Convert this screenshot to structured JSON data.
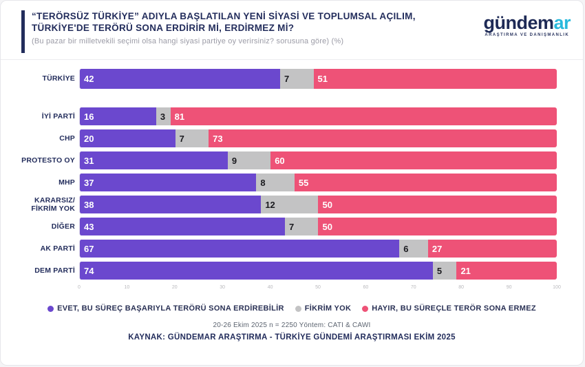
{
  "header": {
    "title_line1": "“TERÖRSÜZ TÜRKİYE” ADIYLA BAŞLATILAN YENİ SİYASİ VE TOPLUMSAL AÇILIM,",
    "title_line2": "TÜRKİYE'DE TERÖRÜ SONA ERDİRİR Mİ, ERDİRMEZ Mİ?",
    "subtitle": "(Bu pazar bir milletvekili seçimi olsa hangi siyasi partiye oy verirsiniz? sorusuna göre) (%)",
    "logo": {
      "text_main": "gündem",
      "text_accent": "ar",
      "tagline": "ARAŞTIRMA VE DANIŞMANLIK"
    }
  },
  "chart_data": {
    "type": "bar",
    "orientation": "horizontal",
    "stacked": true,
    "grid": false,
    "legend_position": "bottom",
    "categories": [
      "TÜRKİYE",
      "İYİ PARTİ",
      "CHP",
      "PROTESTO OY",
      "MHP",
      "KARARSIZ/ FİKRİM YOK",
      "DİĞER",
      "AK PARTİ",
      "DEM PARTİ"
    ],
    "series": [
      {
        "name": "EVET, BU SÜREÇ BAŞARIYLA TERÖRÜ SONA ERDİREBİLİR",
        "color": "#6b48ce",
        "label_color": "#ffffff",
        "values": [
          42,
          16,
          20,
          31,
          37,
          38,
          43,
          67,
          74
        ]
      },
      {
        "name": "FİKRİM YOK",
        "color": "#c3c3c4",
        "label_color": "#1b1b1f",
        "values": [
          7,
          3,
          7,
          9,
          8,
          12,
          7,
          6,
          5
        ]
      },
      {
        "name": "HAYIR, BU SÜREÇLE TERÖR SONA ERMEZ",
        "color": "#ee5277",
        "label_color": "#ffffff",
        "values": [
          51,
          81,
          73,
          60,
          55,
          50,
          50,
          27,
          21
        ]
      }
    ],
    "xlim": [
      0,
      100
    ],
    "xticks": [
      0,
      10,
      20,
      30,
      40,
      50,
      60,
      70,
      80,
      90,
      100
    ]
  },
  "footer": {
    "methodology": "20-26 Ekim 2025 n = 2250 Yöntem: CATI & CAWI",
    "source": "KAYNAK: GÜNDEMAR ARAŞTIRMA - TÜRKİYE GÜNDEMİ ARAŞTIRMASI EKİM 2025"
  }
}
